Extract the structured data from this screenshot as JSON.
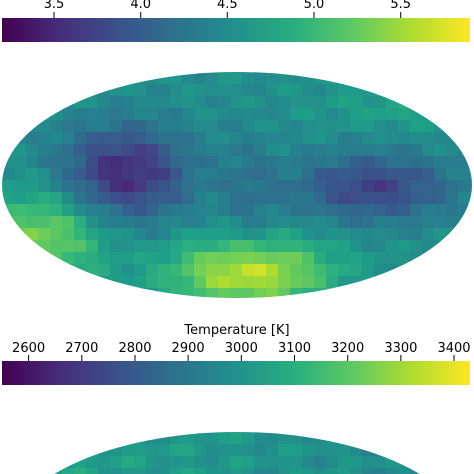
{
  "chart_data": [
    {
      "type": "heatmap",
      "projection": "mollweide",
      "colormap": "viridis",
      "colorbar": {
        "location": "top",
        "range": [
          3.2,
          5.9
        ],
        "ticks": [
          "3.5",
          "4.0",
          "4.5",
          "5.0",
          "5.5"
        ],
        "tick_values": [
          3.5,
          4.0,
          4.5,
          5.0,
          5.5
        ],
        "label": ""
      },
      "regions": [
        {
          "description": "low west-centre patch",
          "lon": -75,
          "lat": 12,
          "value": 3.4
        },
        {
          "description": "low east-centre patch",
          "lon": 85,
          "lat": 5,
          "value": 3.6
        },
        {
          "description": "high southern patch",
          "lon": 10,
          "lat": -48,
          "value": 5.7
        },
        {
          "description": "high south-west limb",
          "lon": -150,
          "lat": -30,
          "value": 5.5
        }
      ]
    },
    {
      "type": "heatmap",
      "projection": "mollweide",
      "colormap": "viridis",
      "colorbar": {
        "location": "top",
        "range": [
          2550,
          3430
        ],
        "ticks": [
          "2600",
          "2700",
          "2800",
          "2900",
          "3000",
          "3100",
          "3200",
          "3300",
          "3400"
        ],
        "tick_values": [
          2600,
          2700,
          2800,
          2900,
          3000,
          3100,
          3200,
          3300,
          3400
        ],
        "label": "Temperature [K]"
      },
      "visible_fraction": "top edge only",
      "approx_value": 3000
    }
  ],
  "colors": {
    "viridis_low": "#440154",
    "viridis_mid": "#21918c",
    "viridis_high": "#fde725"
  }
}
